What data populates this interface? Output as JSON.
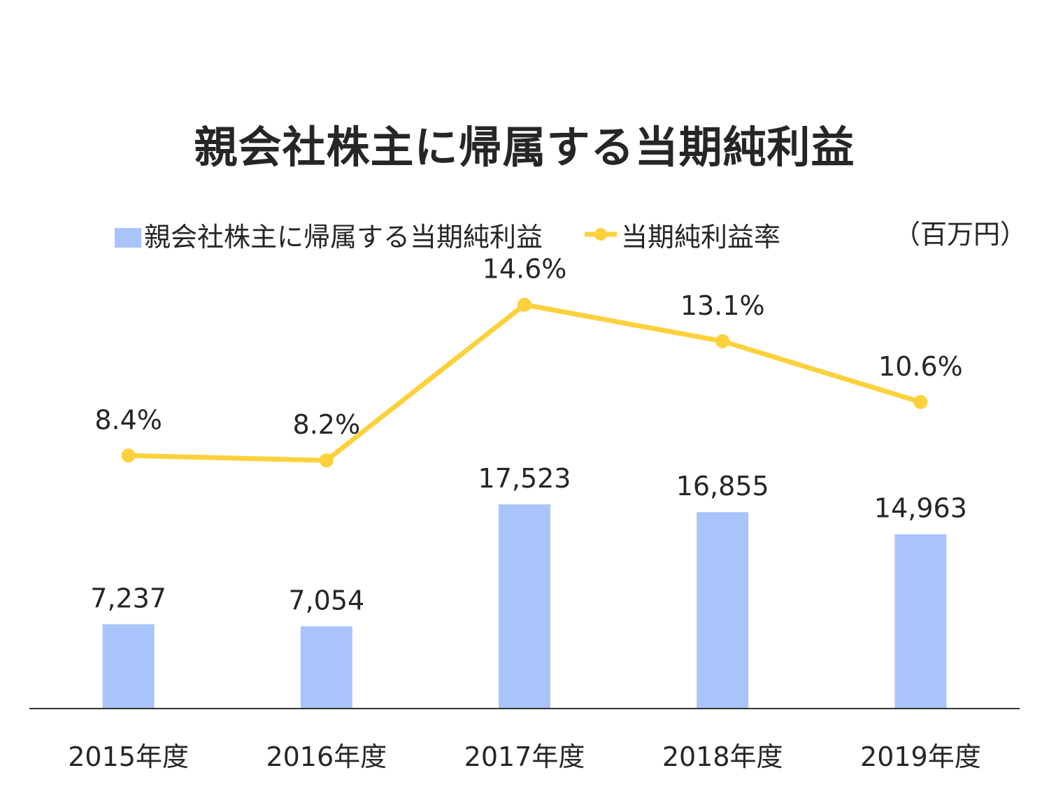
{
  "title": "親会社株主に帰属する当期純利益",
  "unit_label": "（百万円）",
  "legend": {
    "bar_label": "親会社株主に帰属する当期純利益",
    "line_label": "当期純利益率"
  },
  "colors": {
    "bar": "#a9c4fb",
    "line": "#fdd13b",
    "axis": "#333333",
    "text": "#262626"
  },
  "chart_data": {
    "type": "bar",
    "categories": [
      "2015年度",
      "2016年度",
      "2017年度",
      "2018年度",
      "2019年度"
    ],
    "series": [
      {
        "name": "親会社株主に帰属する当期純利益",
        "type": "bar",
        "values": [
          7237,
          7054,
          17523,
          16855,
          14963
        ],
        "labels": [
          "7,237",
          "7,054",
          "17,523",
          "16,855",
          "14,963"
        ]
      },
      {
        "name": "当期純利益率",
        "type": "line",
        "values": [
          8.4,
          8.2,
          14.6,
          13.1,
          10.6
        ],
        "labels": [
          "8.4%",
          "8.2%",
          "14.6%",
          "13.1%",
          "10.6%"
        ]
      }
    ],
    "bar_ylim": [
      0,
      38000
    ],
    "line_ylim": [
      -2.0,
      16.2
    ],
    "grid": false,
    "legend_position": "top"
  }
}
